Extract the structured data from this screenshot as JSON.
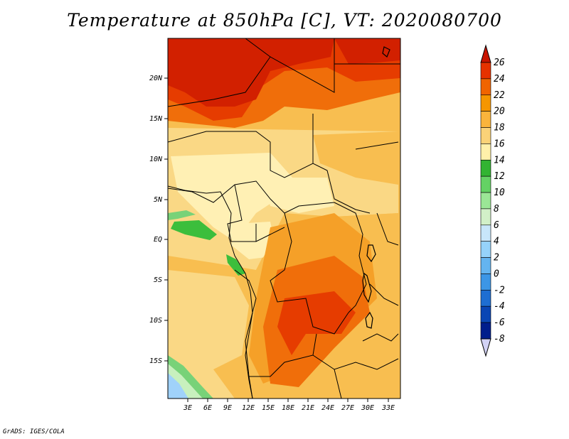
{
  "title": "Temperature at 850hPa [C], VT: 2020080700",
  "credit": "GrADS: IGES/COLA",
  "lat_ticks": [
    "20N",
    "15N",
    "10N",
    "5N",
    "EQ",
    "5S",
    "10S",
    "15S"
  ],
  "lon_ticks": [
    "3E",
    "6E",
    "9E",
    "12E",
    "15E",
    "18E",
    "21E",
    "24E",
    "27E",
    "30E",
    "33E"
  ],
  "colorbar": {
    "labels": [
      "26",
      "24",
      "22",
      "20",
      "18",
      "16",
      "14",
      "12",
      "10",
      "8",
      "6",
      "4",
      "2",
      "0",
      "-2",
      "-4",
      "-6",
      "-8"
    ],
    "colors": [
      "#c81400",
      "#e63200",
      "#f06400",
      "#f59600",
      "#fab43c",
      "#fad278",
      "#fff0aa",
      "#32b432",
      "#64d264",
      "#9be696",
      "#d2f0c8",
      "#c8e6fa",
      "#96d2fa",
      "#64b4f0",
      "#3c96e6",
      "#1e6ed2",
      "#0a46b4",
      "#001e8c",
      "#000064"
    ]
  },
  "map_colors": {
    "c26": "#d22000",
    "c24": "#e63c00",
    "c22": "#f06e0a",
    "c20": "#f5a028",
    "c18": "#f8be50",
    "c16": "#fad885",
    "c14": "#fff0b4",
    "c12": "#3cbe3c",
    "c10": "#78d278",
    "c8": "#c8f0be",
    "c6": "#d2ebfa",
    "c4": "#a0d2fa",
    "c2": "#78bef0"
  }
}
